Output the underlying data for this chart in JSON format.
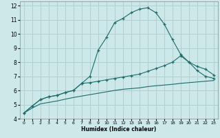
{
  "xlabel": "Humidex (Indice chaleur)",
  "bg_color": "#cce8e8",
  "grid_color": "#b0d0d0",
  "line_color": "#1a6b6b",
  "xlim": [
    -0.5,
    23.5
  ],
  "ylim": [
    4,
    12.3
  ],
  "xticks": [
    0,
    1,
    2,
    3,
    4,
    5,
    6,
    7,
    8,
    9,
    10,
    11,
    12,
    13,
    14,
    15,
    16,
    17,
    18,
    19,
    20,
    21,
    22,
    23
  ],
  "yticks": [
    4,
    5,
    6,
    7,
    8,
    9,
    10,
    11,
    12
  ],
  "curve1_x": [
    0,
    1,
    2,
    3,
    4,
    5,
    6,
    7,
    8,
    9,
    10,
    11,
    12,
    13,
    14,
    15,
    16,
    17,
    18,
    19,
    20,
    21,
    22,
    23
  ],
  "curve1_y": [
    4.4,
    4.9,
    5.35,
    5.55,
    5.65,
    5.85,
    6.0,
    6.5,
    7.0,
    8.85,
    9.75,
    10.8,
    11.1,
    11.5,
    11.75,
    11.85,
    11.5,
    10.7,
    9.6,
    8.55,
    8.0,
    7.4,
    7.0,
    6.85
  ],
  "curve2_x": [
    0,
    1,
    2,
    3,
    4,
    5,
    6,
    7,
    8,
    9,
    10,
    11,
    12,
    13,
    14,
    15,
    16,
    17,
    18,
    19,
    20,
    21,
    22,
    23
  ],
  "curve2_y": [
    4.4,
    4.9,
    5.35,
    5.55,
    5.65,
    5.85,
    6.0,
    6.5,
    6.55,
    6.65,
    6.75,
    6.85,
    6.95,
    7.05,
    7.15,
    7.35,
    7.55,
    7.75,
    8.0,
    8.45,
    8.0,
    7.7,
    7.5,
    7.1
  ],
  "curve3_x": [
    0,
    1,
    2,
    3,
    4,
    5,
    6,
    7,
    8,
    9,
    10,
    11,
    12,
    13,
    14,
    15,
    16,
    17,
    18,
    19,
    20,
    21,
    22,
    23
  ],
  "curve3_y": [
    4.4,
    4.75,
    5.05,
    5.15,
    5.25,
    5.38,
    5.5,
    5.6,
    5.7,
    5.8,
    5.9,
    6.0,
    6.08,
    6.13,
    6.18,
    6.27,
    6.33,
    6.38,
    6.43,
    6.5,
    6.55,
    6.6,
    6.65,
    6.7
  ]
}
